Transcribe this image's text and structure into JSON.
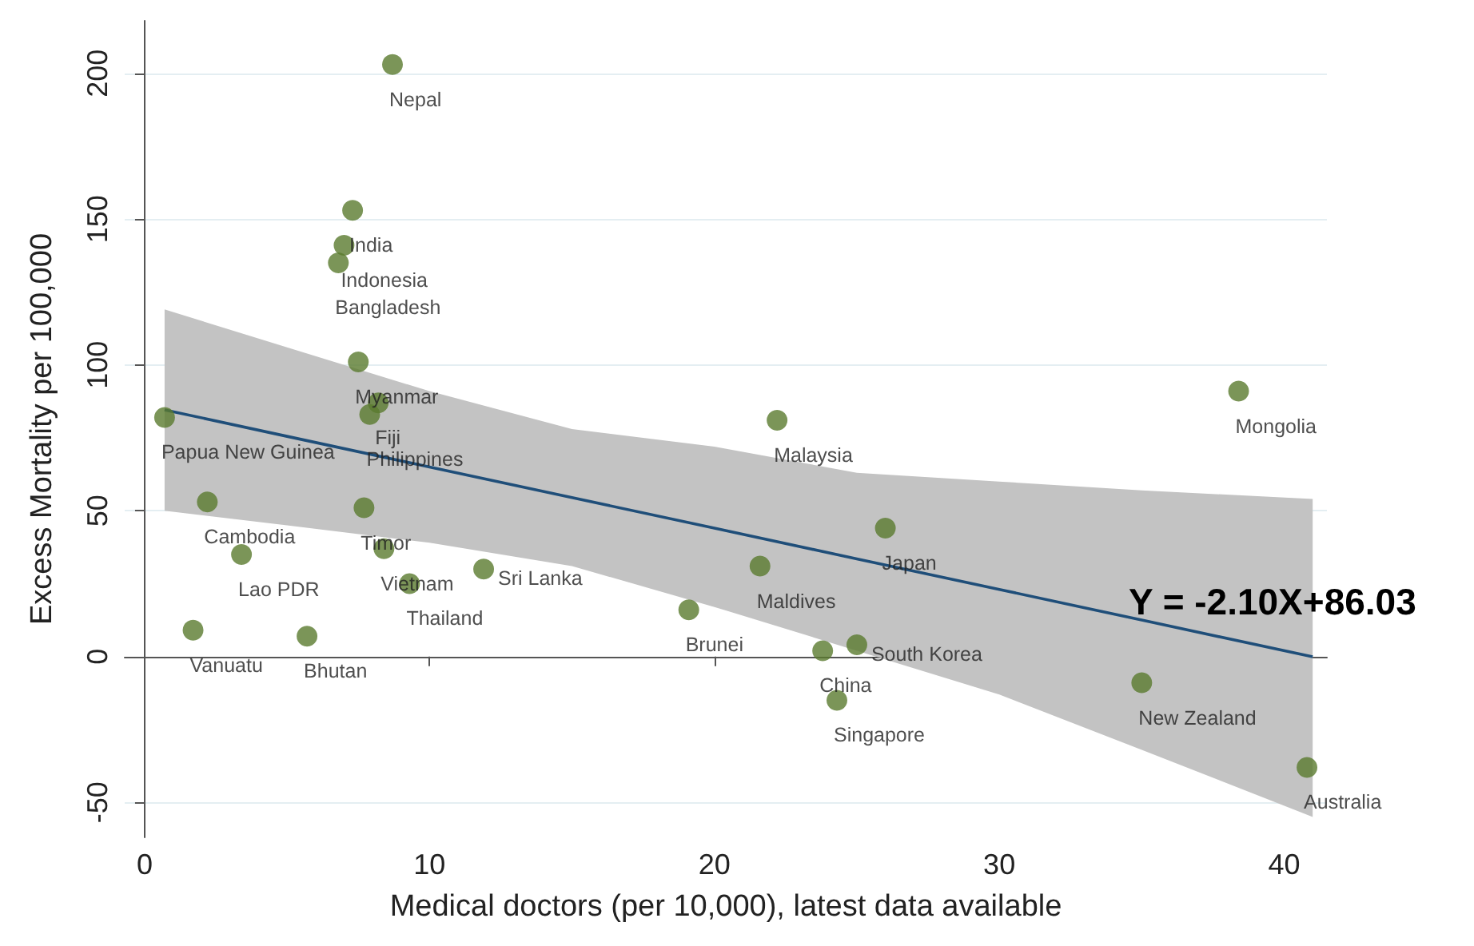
{
  "chart_data": {
    "type": "scatter",
    "xlabel": "Medical doctors (per 10,000), latest data available",
    "ylabel": "Excess Mortality per 100,000",
    "xlim": [
      -0.7,
      41.5
    ],
    "xticks": [
      0,
      10,
      20,
      30,
      40
    ],
    "ylim": [
      -62,
      218
    ],
    "yticks": [
      -50,
      0,
      50,
      100,
      150,
      200
    ],
    "grid": "y",
    "marker": "circle",
    "annotations": [
      "Y = -2.10X+86.03"
    ],
    "series": [
      {
        "color": "#5a7a2e",
        "x": [
          8.7,
          7.3,
          7.0,
          6.8,
          7.5,
          8.2,
          7.9,
          0.7,
          2.2,
          7.7,
          3.4,
          8.4,
          9.3,
          11.9,
          1.7,
          5.7,
          22.2,
          21.6,
          19.1,
          26.0,
          23.8,
          25.0,
          24.3,
          38.4,
          35.0,
          40.8
        ],
        "values": [
          203,
          153,
          141,
          135,
          101,
          87,
          83,
          82,
          53,
          51,
          35,
          37,
          25,
          30,
          9,
          7,
          81,
          31,
          16,
          44,
          2,
          4,
          -15,
          91,
          -9,
          -38
        ],
        "value_labels": [
          "Nepal",
          "India",
          "Indonesia",
          "Bangladesh",
          "Myanmar",
          "Fiji",
          "Philippines",
          "Papua New Guinea",
          "Cambodia",
          "Timor",
          "Lao PDR",
          "Vietnam",
          "Thailand",
          "Sri Lanka",
          "Vanuatu",
          "Bhutan",
          "Malaysia",
          "Maldives",
          "Brunei",
          "Japan",
          "China",
          "South Korea",
          "Singapore",
          "Mongolia",
          "New Zealand",
          "Australia"
        ]
      },
      {
        "type": "line",
        "color": "#1f4e79",
        "line_style": "solid",
        "marker": "none",
        "x": [
          0.7,
          5,
          10,
          15,
          20,
          25,
          30,
          35,
          41
        ],
        "values": [
          84.6,
          75.5,
          65.0,
          54.5,
          44.0,
          33.5,
          23.0,
          12.5,
          -0.1
        ],
        "lower": [
          50,
          45,
          39,
          31,
          17,
          2,
          -13,
          -32,
          -55
        ],
        "upper": [
          119,
          106,
          91,
          78,
          72,
          63,
          60,
          57,
          54
        ]
      }
    ]
  }
}
